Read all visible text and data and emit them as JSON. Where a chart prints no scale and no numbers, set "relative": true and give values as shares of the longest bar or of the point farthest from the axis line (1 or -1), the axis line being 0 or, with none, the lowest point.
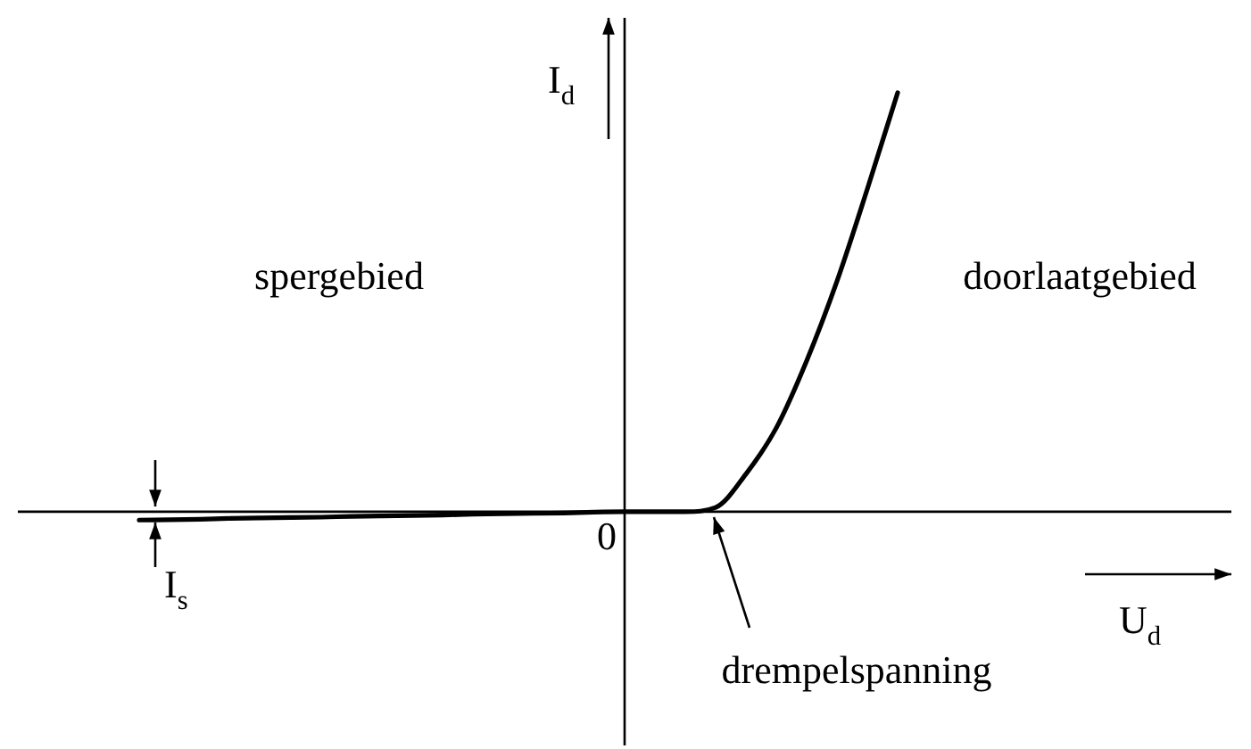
{
  "chart_data": {
    "type": "line",
    "relative": true,
    "xlabel": "U$_{d}$",
    "ylabel": "I$_{d}$",
    "annotations": [
      "spergebied",
      "doorlaatgebied",
      "0",
      "drempelspanning",
      "I$_{s}$"
    ],
    "categories": [
      null,
      null,
      null,
      null,
      null,
      null,
      null,
      null,
      null,
      null,
      null,
      null,
      null,
      null,
      null,
      null,
      null,
      null,
      null,
      null,
      null,
      null,
      null,
      null,
      null,
      null,
      null,
      null,
      null,
      null,
      null,
      null,
      null,
      null,
      null,
      null,
      null,
      null,
      null,
      null,
      null
    ],
    "series": [
      {
        "color": "#000000",
        "values": [
          null,
          null,
          null,
          null,
          -0.02,
          -0.019,
          -0.018,
          -0.016,
          -0.015,
          -0.014,
          -0.013,
          -0.011,
          -0.01,
          -0.009,
          -0.008,
          -0.006,
          -0.005,
          -0.004,
          -0.003,
          -0.001,
          0,
          0,
          0,
          0.01,
          0.09,
          0.2,
          0.36,
          0.55,
          0.77,
          1,
          null,
          null,
          null,
          null,
          null,
          null,
          null,
          null,
          null,
          null,
          null
        ]
      }
    ]
  }
}
